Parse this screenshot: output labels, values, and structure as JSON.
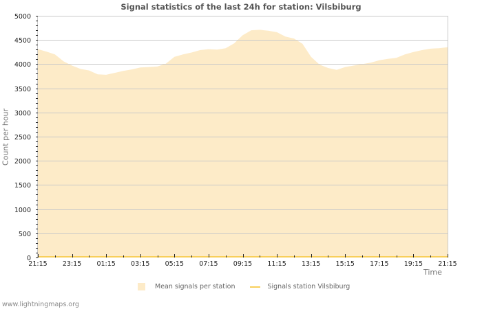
{
  "chart": {
    "title": "Signal statistics of the last 24h for station: Vilsbiburg",
    "ylabel": "Count per hour",
    "xlabel": "Time",
    "footer": "www.lightningmaps.org",
    "legend": [
      {
        "label": "Mean signals per station",
        "type": "area",
        "color": "#fdebc8"
      },
      {
        "label": "Signals station Vilsbiburg",
        "type": "line",
        "color": "#f8cf5a"
      }
    ]
  },
  "chart_data": {
    "type": "area",
    "title": "Signal statistics of the last 24h for station: Vilsbiburg",
    "xlabel": "Time",
    "ylabel": "Count per hour",
    "ylim": [
      0,
      5000
    ],
    "yticks": [
      0,
      500,
      1000,
      1500,
      2000,
      2500,
      3000,
      3500,
      4000,
      4500,
      5000
    ],
    "xticks": [
      "21:15",
      "23:15",
      "01:15",
      "03:15",
      "05:15",
      "07:15",
      "09:15",
      "11:15",
      "13:15",
      "15:15",
      "17:15",
      "19:15",
      "21:15"
    ],
    "grid": true,
    "legend_position": "bottom",
    "x_step_hours": 0.5,
    "series": [
      {
        "name": "Mean signals per station",
        "type": "area",
        "color": "#fdebc8",
        "values": [
          4310,
          4260,
          4200,
          4060,
          3970,
          3900,
          3870,
          3790,
          3780,
          3820,
          3860,
          3890,
          3930,
          3940,
          3950,
          4010,
          4150,
          4200,
          4240,
          4290,
          4310,
          4300,
          4330,
          4430,
          4600,
          4700,
          4710,
          4690,
          4660,
          4570,
          4530,
          4420,
          4150,
          3990,
          3920,
          3880,
          3940,
          3970,
          4000,
          4030,
          4080,
          4110,
          4130,
          4200,
          4250,
          4290,
          4320,
          4330,
          4350
        ]
      },
      {
        "name": "Signals station Vilsbiburg",
        "type": "line",
        "color": "#f8cf5a",
        "values": [
          0,
          0,
          0,
          0,
          0,
          0,
          0,
          0,
          0,
          0,
          0,
          0,
          0,
          0,
          0,
          0,
          0,
          0,
          0,
          0,
          0,
          0,
          0,
          0,
          0,
          0,
          0,
          0,
          0,
          0,
          0,
          0,
          0,
          0,
          0,
          0,
          0,
          0,
          0,
          0,
          0,
          0,
          0,
          0,
          0,
          0,
          0,
          0,
          0
        ]
      }
    ]
  }
}
